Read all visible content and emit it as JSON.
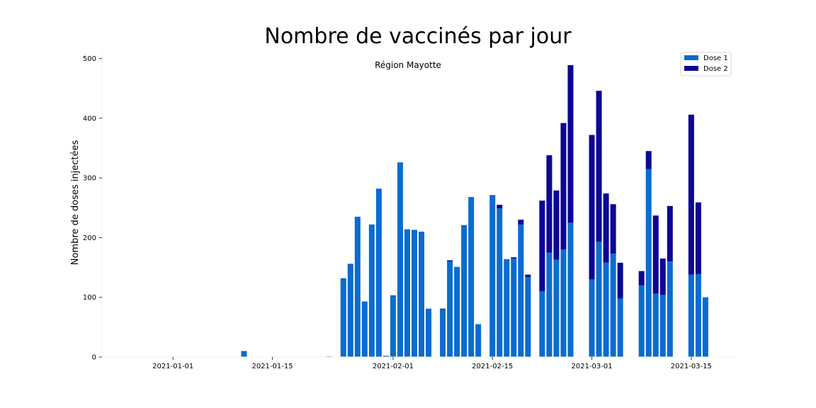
{
  "chart_data": {
    "type": "bar",
    "stacked": true,
    "title": "Nombre de vaccinés par jour",
    "subtitle": "Région Mayotte",
    "xlabel": "",
    "ylabel": "Nombre de doses injectées",
    "ylim": [
      0,
      515
    ],
    "xlim": [
      "2020-12-22",
      "2021-03-21"
    ],
    "y_ticks": [
      0,
      100,
      200,
      300,
      400,
      500
    ],
    "x_ticks": [
      "2021-01-01",
      "2021-01-15",
      "2021-02-01",
      "2021-02-15",
      "2021-03-01",
      "2021-03-15"
    ],
    "legend_position": "top-right",
    "grid": false,
    "x": [
      "2021-01-11",
      "2021-01-23",
      "2021-01-25",
      "2021-01-26",
      "2021-01-27",
      "2021-01-28",
      "2021-01-29",
      "2021-01-30",
      "2021-01-31",
      "2021-02-01",
      "2021-02-02",
      "2021-02-03",
      "2021-02-04",
      "2021-02-05",
      "2021-02-06",
      "2021-02-08",
      "2021-02-09",
      "2021-02-10",
      "2021-02-11",
      "2021-02-12",
      "2021-02-13",
      "2021-02-15",
      "2021-02-16",
      "2021-02-17",
      "2021-02-18",
      "2021-02-19",
      "2021-02-20",
      "2021-02-22",
      "2021-02-23",
      "2021-02-24",
      "2021-02-25",
      "2021-02-26",
      "2021-03-01",
      "2021-03-02",
      "2021-03-03",
      "2021-03-04",
      "2021-03-05",
      "2021-03-08",
      "2021-03-09",
      "2021-03-10",
      "2021-03-11",
      "2021-03-12",
      "2021-03-15",
      "2021-03-16",
      "2021-03-17"
    ],
    "series": [
      {
        "name": "Dose 1",
        "color": "#0a6ccf",
        "values": [
          10,
          1,
          132,
          155,
          235,
          93,
          222,
          282,
          2,
          102,
          326,
          214,
          213,
          210,
          81,
          80,
          160,
          151,
          221,
          268,
          55,
          270,
          249,
          164,
          165,
          222,
          134,
          110,
          175,
          163,
          180,
          225,
          130,
          193,
          158,
          173,
          98,
          120,
          315,
          106,
          104,
          160,
          138,
          139,
          100
        ]
      },
      {
        "name": "Dose 2",
        "color": "#0c0794",
        "values": [
          0,
          0,
          0,
          1,
          0,
          0,
          0,
          0,
          0,
          1,
          0,
          0,
          0,
          0,
          0,
          1,
          2,
          0,
          0,
          0,
          0,
          1,
          6,
          0,
          2,
          8,
          4,
          152,
          163,
          116,
          212,
          264,
          242,
          253,
          116,
          83,
          60,
          24,
          30,
          131,
          61,
          93,
          268,
          120,
          0
        ]
      }
    ]
  }
}
